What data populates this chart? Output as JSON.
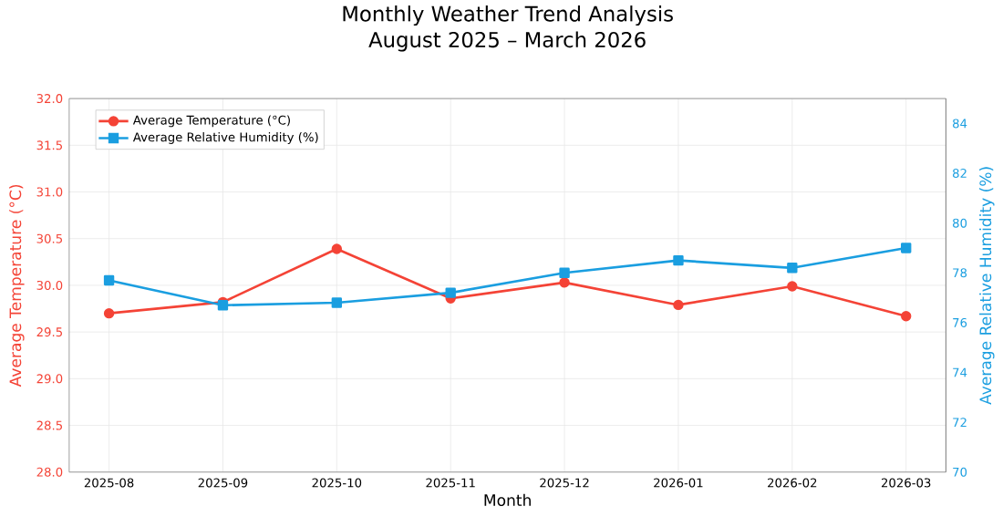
{
  "chart_data": {
    "type": "line",
    "title": "Monthly Weather Trend Analysis",
    "subtitle": "August 2025 – March 2026",
    "xlabel": "Month",
    "ylabel": "Average Temperature (°C)",
    "y2label": "Average Relative Humidity (%)",
    "categories": [
      "2025-08",
      "2025-09",
      "2025-10",
      "2025-11",
      "2025-12",
      "2026-01",
      "2026-02",
      "2026-03"
    ],
    "series": [
      {
        "name": "Average Temperature (°C)",
        "color": "#f44336",
        "marker": "circle",
        "values": [
          29.7,
          29.82,
          30.39,
          29.86,
          30.03,
          29.79,
          29.99,
          29.67
        ]
      },
      {
        "name": "Average Relative Humidity (%)",
        "color": "#1a9ee0",
        "marker": "square",
        "axis": "y2",
        "values": [
          77.7,
          76.7,
          76.8,
          77.2,
          78.0,
          78.5,
          78.2,
          79.0
        ]
      }
    ],
    "ylim": [
      28,
      32
    ],
    "yticks": [
      {
        "value": 28,
        "label": "28.0"
      },
      28.5,
      {
        "value": 29,
        "label": "29.0"
      },
      29.5,
      {
        "value": 30,
        "label": "30.0"
      },
      30.5,
      {
        "value": 31,
        "label": "31.0"
      },
      31.5,
      {
        "value": 32,
        "label": "32.0"
      }
    ],
    "y2lim": [
      70,
      85
    ],
    "y2ticks": [
      70,
      72,
      74,
      76,
      78,
      80,
      82,
      84
    ],
    "grid": true,
    "legend": "top left"
  }
}
